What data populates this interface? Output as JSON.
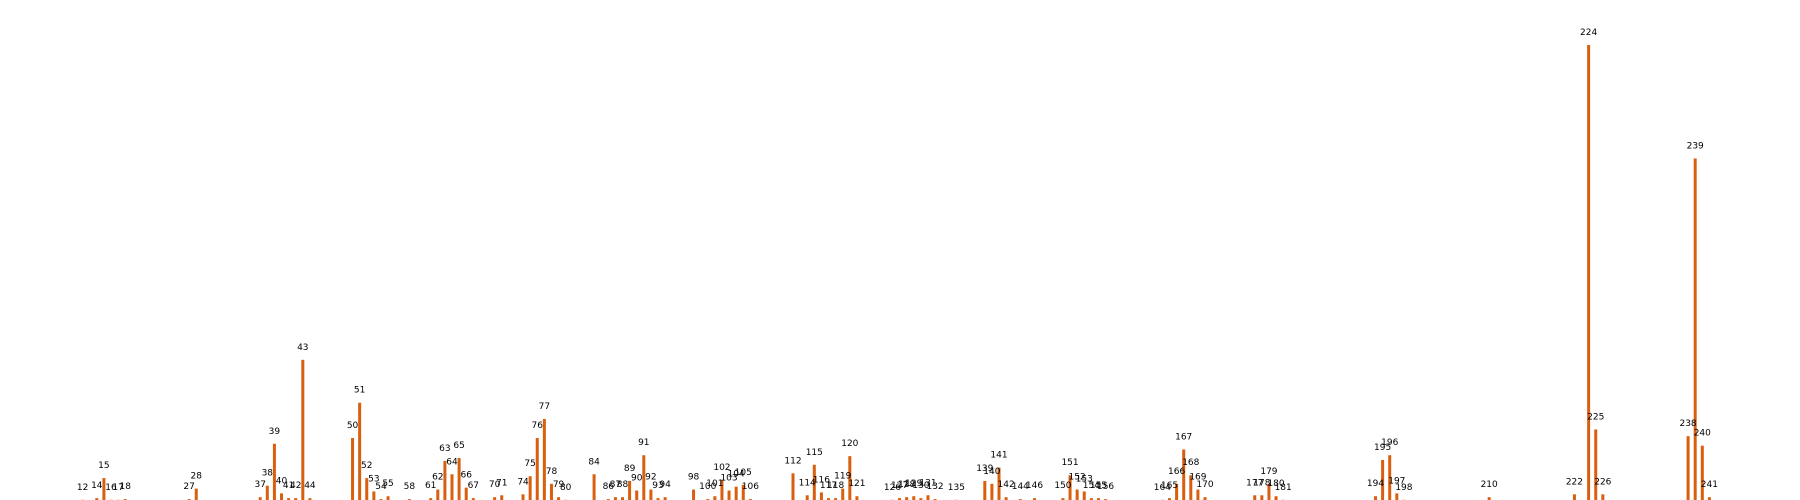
{
  "chart_data": {
    "type": "bar",
    "color": "#d95f0e",
    "ylim": [
      0,
      500
    ],
    "grid": false,
    "axes_visible": false,
    "bars": [
      {
        "label": "12",
        "x": 12,
        "value": 1
      },
      {
        "label": "14",
        "x": 14,
        "value": 3
      },
      {
        "label": "15",
        "x": 15,
        "value": 24
      },
      {
        "label": "16",
        "x": 16,
        "value": 1
      },
      {
        "label": "17",
        "x": 17,
        "value": 1
      },
      {
        "label": "18",
        "x": 18,
        "value": 2
      },
      {
        "label": "27",
        "x": 27,
        "value": 2
      },
      {
        "label": "28",
        "x": 28,
        "value": 13
      },
      {
        "label": "37",
        "x": 37,
        "value": 4
      },
      {
        "label": "38",
        "x": 38,
        "value": 16
      },
      {
        "label": "39",
        "x": 39,
        "value": 60
      },
      {
        "label": "40",
        "x": 40,
        "value": 8
      },
      {
        "label": "41",
        "x": 41,
        "value": 3
      },
      {
        "label": "42",
        "x": 42,
        "value": 3
      },
      {
        "label": "43",
        "x": 43,
        "value": 148
      },
      {
        "label": "44",
        "x": 44,
        "value": 3
      },
      {
        "label": "50",
        "x": 50,
        "value": 66
      },
      {
        "label": "51",
        "x": 51,
        "value": 103
      },
      {
        "label": "52",
        "x": 52,
        "value": 24
      },
      {
        "label": "53",
        "x": 53,
        "value": 10
      },
      {
        "label": "54",
        "x": 54,
        "value": 2
      },
      {
        "label": "55",
        "x": 55,
        "value": 5
      },
      {
        "label": "58",
        "x": 58,
        "value": 2
      },
      {
        "label": "61",
        "x": 61,
        "value": 3
      },
      {
        "label": "62",
        "x": 62,
        "value": 12
      },
      {
        "label": "63",
        "x": 63,
        "value": 42
      },
      {
        "label": "64",
        "x": 64,
        "value": 28
      },
      {
        "label": "65",
        "x": 65,
        "value": 45
      },
      {
        "label": "66",
        "x": 66,
        "value": 14
      },
      {
        "label": "67",
        "x": 67,
        "value": 3
      },
      {
        "label": "70",
        "x": 70,
        "value": 4
      },
      {
        "label": "71",
        "x": 71,
        "value": 6
      },
      {
        "label": "74",
        "x": 74,
        "value": 7
      },
      {
        "label": "75",
        "x": 75,
        "value": 26
      },
      {
        "label": "76",
        "x": 76,
        "value": 66
      },
      {
        "label": "77",
        "x": 77,
        "value": 86
      },
      {
        "label": "78",
        "x": 78,
        "value": 18
      },
      {
        "label": "79",
        "x": 79,
        "value": 4
      },
      {
        "label": "80",
        "x": 80,
        "value": 1
      },
      {
        "label": "84",
        "x": 84,
        "value": 28
      },
      {
        "label": "86",
        "x": 86,
        "value": 2
      },
      {
        "label": "87",
        "x": 87,
        "value": 4
      },
      {
        "label": "88",
        "x": 88,
        "value": 4
      },
      {
        "label": "89",
        "x": 89,
        "value": 21
      },
      {
        "label": "90",
        "x": 90,
        "value": 11
      },
      {
        "label": "91",
        "x": 91,
        "value": 48
      },
      {
        "label": "92",
        "x": 92,
        "value": 12
      },
      {
        "label": "93",
        "x": 93,
        "value": 3
      },
      {
        "label": "94",
        "x": 94,
        "value": 4
      },
      {
        "label": "98",
        "x": 98,
        "value": 12
      },
      {
        "label": "100",
        "x": 100,
        "value": 2
      },
      {
        "label": "101",
        "x": 101,
        "value": 5
      },
      {
        "label": "102",
        "x": 102,
        "value": 22
      },
      {
        "label": "103",
        "x": 103,
        "value": 11
      },
      {
        "label": "104",
        "x": 104,
        "value": 15
      },
      {
        "label": "105",
        "x": 105,
        "value": 17
      },
      {
        "label": "106",
        "x": 106,
        "value": 2
      },
      {
        "label": "112",
        "x": 112,
        "value": 29
      },
      {
        "label": "114",
        "x": 114,
        "value": 6
      },
      {
        "label": "115",
        "x": 115,
        "value": 38
      },
      {
        "label": "116",
        "x": 116,
        "value": 9
      },
      {
        "label": "117",
        "x": 117,
        "value": 3
      },
      {
        "label": "118",
        "x": 118,
        "value": 3
      },
      {
        "label": "119",
        "x": 119,
        "value": 13
      },
      {
        "label": "120",
        "x": 120,
        "value": 47
      },
      {
        "label": "121",
        "x": 121,
        "value": 5
      },
      {
        "label": "126",
        "x": 126,
        "value": 1
      },
      {
        "label": "127",
        "x": 127,
        "value": 3
      },
      {
        "label": "128",
        "x": 128,
        "value": 4
      },
      {
        "label": "129",
        "x": 129,
        "value": 5
      },
      {
        "label": "130",
        "x": 130,
        "value": 3
      },
      {
        "label": "131",
        "x": 131,
        "value": 6
      },
      {
        "label": "132",
        "x": 132,
        "value": 2
      },
      {
        "label": "135",
        "x": 135,
        "value": 1
      },
      {
        "label": "139",
        "x": 139,
        "value": 21
      },
      {
        "label": "140",
        "x": 140,
        "value": 18
      },
      {
        "label": "141",
        "x": 141,
        "value": 35
      },
      {
        "label": "142",
        "x": 142,
        "value": 4
      },
      {
        "label": "144",
        "x": 144,
        "value": 2
      },
      {
        "label": "146",
        "x": 146,
        "value": 3
      },
      {
        "label": "150",
        "x": 150,
        "value": 3
      },
      {
        "label": "151",
        "x": 151,
        "value": 27
      },
      {
        "label": "152",
        "x": 152,
        "value": 12
      },
      {
        "label": "153",
        "x": 153,
        "value": 10
      },
      {
        "label": "154",
        "x": 154,
        "value": 3
      },
      {
        "label": "155",
        "x": 155,
        "value": 3
      },
      {
        "label": "156",
        "x": 156,
        "value": 2
      },
      {
        "label": "164",
        "x": 164,
        "value": 1
      },
      {
        "label": "165",
        "x": 165,
        "value": 3
      },
      {
        "label": "166",
        "x": 166,
        "value": 18
      },
      {
        "label": "167",
        "x": 167,
        "value": 54
      },
      {
        "label": "168",
        "x": 168,
        "value": 27
      },
      {
        "label": "169",
        "x": 169,
        "value": 12
      },
      {
        "label": "170",
        "x": 170,
        "value": 4
      },
      {
        "label": "177",
        "x": 177,
        "value": 6
      },
      {
        "label": "178",
        "x": 178,
        "value": 6
      },
      {
        "label": "179",
        "x": 179,
        "value": 18
      },
      {
        "label": "180",
        "x": 180,
        "value": 5
      },
      {
        "label": "181",
        "x": 181,
        "value": 1
      },
      {
        "label": "194",
        "x": 194,
        "value": 5
      },
      {
        "label": "195",
        "x": 195,
        "value": 43
      },
      {
        "label": "196",
        "x": 196,
        "value": 48
      },
      {
        "label": "197",
        "x": 197,
        "value": 8
      },
      {
        "label": "198",
        "x": 198,
        "value": 1
      },
      {
        "label": "210",
        "x": 210,
        "value": 4
      },
      {
        "label": "222",
        "x": 222,
        "value": 7
      },
      {
        "label": "224",
        "x": 224,
        "value": 478
      },
      {
        "label": "225",
        "x": 225,
        "value": 75
      },
      {
        "label": "226",
        "x": 226,
        "value": 7
      },
      {
        "label": "238",
        "x": 238,
        "value": 68
      },
      {
        "label": "239",
        "x": 239,
        "value": 359
      },
      {
        "label": "240",
        "x": 240,
        "value": 58
      },
      {
        "label": "241",
        "x": 241,
        "value": 4
      }
    ]
  }
}
